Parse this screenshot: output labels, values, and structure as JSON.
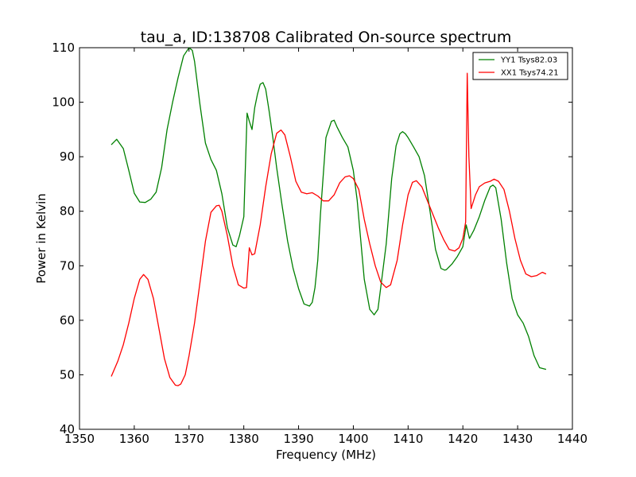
{
  "chart_data": {
    "type": "line",
    "title": "tau_a, ID:138708 Calibrated On-source spectrum",
    "xlabel": "Frequency (MHz)",
    "ylabel": "Power in Kelvin",
    "xlim": [
      1350,
      1440
    ],
    "ylim": [
      40,
      110
    ],
    "xticks": [
      1350,
      1360,
      1370,
      1380,
      1390,
      1400,
      1410,
      1420,
      1430,
      1440
    ],
    "yticks": [
      40,
      50,
      60,
      70,
      80,
      90,
      100,
      110
    ],
    "grid": false,
    "legend_position": "top-right",
    "series": [
      {
        "name": "YY1 Tsys82.03",
        "color": "#008000",
        "x": [
          1355.8,
          1356.8,
          1358,
          1359,
          1360,
          1361,
          1362,
          1363,
          1364,
          1365,
          1366,
          1367,
          1368,
          1369,
          1370,
          1370.6,
          1371,
          1372,
          1373,
          1374,
          1375,
          1376,
          1377,
          1378,
          1378.6,
          1379.2,
          1380,
          1380.6,
          1381,
          1381.5,
          1382,
          1382.5,
          1383,
          1383.5,
          1384,
          1384.6,
          1385.3,
          1386,
          1387,
          1388,
          1389,
          1390,
          1391,
          1392,
          1392.5,
          1393,
          1393.5,
          1394,
          1395,
          1396,
          1396.5,
          1397,
          1398,
          1399,
          1400,
          1400.7,
          1401.5,
          1402,
          1403,
          1403.8,
          1404.5,
          1405,
          1406,
          1407,
          1407.8,
          1408.5,
          1409,
          1409.5,
          1410,
          1411,
          1412,
          1413,
          1414,
          1415,
          1416,
          1416.7,
          1417,
          1418,
          1419,
          1420,
          1420.6,
          1421.2,
          1422,
          1423,
          1424,
          1425,
          1425.5,
          1426,
          1427,
          1428,
          1429,
          1430,
          1431,
          1432,
          1433,
          1434,
          1435.2
        ],
        "y": [
          92.2,
          93.2,
          91.5,
          87.5,
          83.3,
          81.7,
          81.6,
          82.2,
          83.5,
          88,
          95,
          100,
          104.5,
          108.5,
          110,
          109.5,
          107.5,
          99.5,
          92.5,
          89.5,
          87.5,
          83.2,
          77,
          73.8,
          73.5,
          75.5,
          79,
          98,
          96.5,
          95,
          99,
          101.5,
          103.3,
          103.6,
          102.4,
          98.5,
          93.5,
          88,
          81,
          74.5,
          69.5,
          65.8,
          63,
          62.6,
          63.3,
          66,
          71,
          79.5,
          93.5,
          96.5,
          96.7,
          95.5,
          93.5,
          91.8,
          87.5,
          82,
          73,
          67.5,
          62,
          61,
          62,
          66,
          74,
          86,
          92,
          94.2,
          94.6,
          94.2,
          93.5,
          91.8,
          90,
          86.5,
          80,
          73,
          69.5,
          69.2,
          69.3,
          70.3,
          71.7,
          73.5,
          77.5,
          75,
          76.5,
          79,
          82,
          84.5,
          84.8,
          84.3,
          78.5,
          70.5,
          64,
          61,
          59.5,
          57,
          53.5,
          51.3,
          51
        ]
      },
      {
        "name": "XX1 Tsys74.21",
        "color": "#ff0000",
        "x": [
          1355.8,
          1357,
          1358,
          1359,
          1360,
          1361,
          1361.7,
          1362.5,
          1363.5,
          1364.5,
          1365.5,
          1366.5,
          1367.5,
          1368,
          1368.5,
          1369.3,
          1370,
          1371,
          1372,
          1373,
          1374,
          1375,
          1375.5,
          1376,
          1377,
          1378,
          1379,
          1380,
          1380.5,
          1381,
          1381.5,
          1382,
          1383,
          1384,
          1385,
          1386,
          1386.8,
          1387.5,
          1388.5,
          1389.5,
          1390.5,
          1391.5,
          1392.5,
          1393.5,
          1394.5,
          1395.5,
          1396.5,
          1397.5,
          1398.5,
          1399.3,
          1400,
          1401,
          1402,
          1403,
          1404,
          1405,
          1406,
          1406.8,
          1408,
          1409,
          1410,
          1410.8,
          1411.5,
          1412.5,
          1413.5,
          1414.5,
          1415.5,
          1416.5,
          1417.5,
          1418.5,
          1419.3,
          1420,
          1420.5,
          1420.8,
          1421.1,
          1421.5,
          1422.3,
          1423,
          1424,
          1425,
          1425.7,
          1426.5,
          1427.5,
          1428.5,
          1429.5,
          1430.5,
          1431.5,
          1432.5,
          1433.5,
          1434.5,
          1435.2
        ],
        "y": [
          49.7,
          52.5,
          55.5,
          59.5,
          64,
          67.5,
          68.4,
          67.5,
          64,
          58.5,
          53,
          49.5,
          48.1,
          48,
          48.3,
          50,
          53.5,
          59.5,
          67,
          74.5,
          79.8,
          81,
          81.1,
          80,
          75.5,
          70,
          66.5,
          65.9,
          66,
          73.3,
          72,
          72.2,
          77.5,
          84.5,
          90.5,
          94.3,
          94.9,
          94,
          90,
          85.5,
          83.5,
          83.2,
          83.4,
          82.8,
          81.9,
          81.9,
          83,
          85.2,
          86.3,
          86.5,
          86,
          84,
          78.5,
          74,
          70,
          67,
          66,
          66.5,
          71,
          77.5,
          83,
          85.3,
          85.6,
          84.5,
          82,
          79.5,
          77,
          74.8,
          73,
          72.7,
          73.3,
          75,
          78,
          105.3,
          90,
          80.5,
          83,
          84.5,
          85.2,
          85.5,
          85.9,
          85.5,
          84,
          80,
          75,
          71,
          68.5,
          68,
          68.2,
          68.8,
          68.5
        ]
      }
    ]
  }
}
